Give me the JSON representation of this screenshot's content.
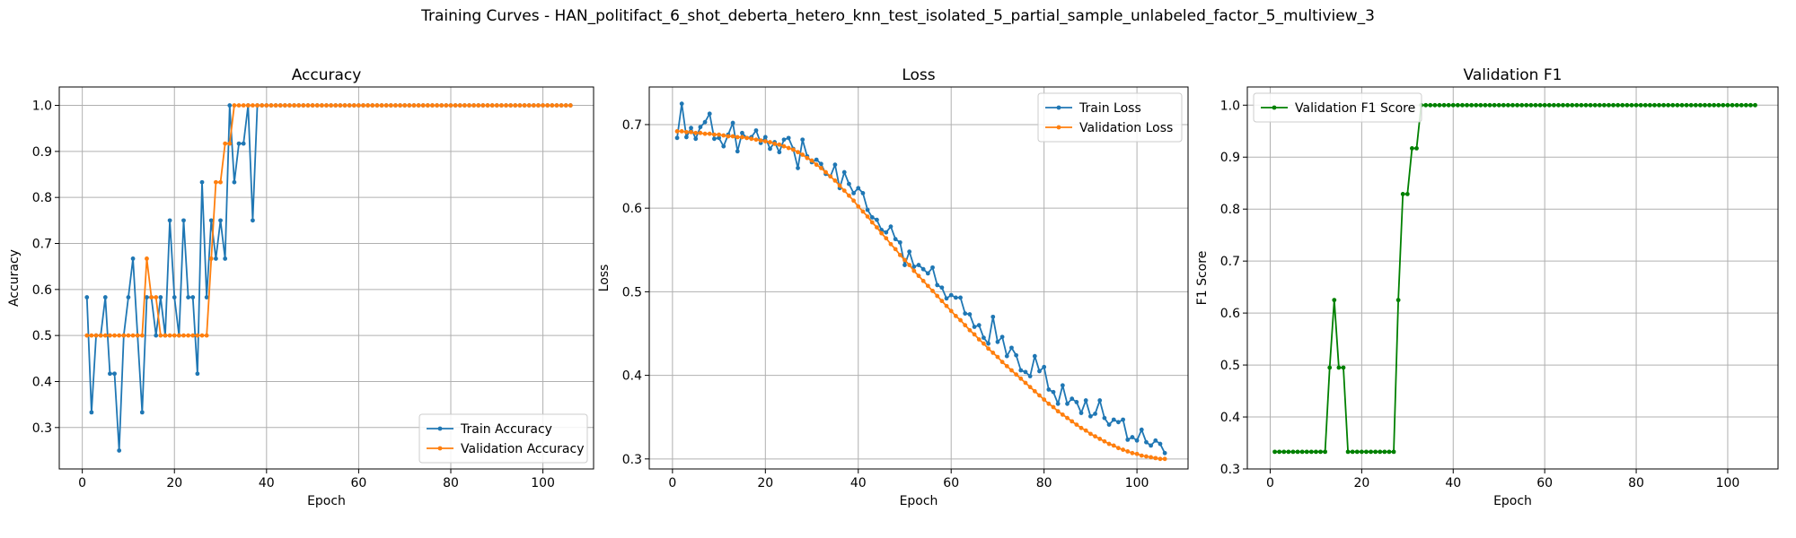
{
  "figure": {
    "title": "Training Curves - HAN_politifact_6_shot_deberta_hetero_knn_test_isolated_5_partial_sample_unlabeled_factor_5_multiview_3"
  },
  "colors": {
    "train": "#1f77b4",
    "validation": "#ff7f0e",
    "f1": "#008000",
    "grid": "#b0b0b0"
  },
  "chart_data": [
    {
      "type": "line",
      "title": "Accuracy",
      "xlabel": "Epoch",
      "ylabel": "Accuracy",
      "xlim": [
        -5,
        111
      ],
      "ylim": [
        0.21,
        1.04
      ],
      "xticks": [
        0,
        20,
        40,
        60,
        80,
        100
      ],
      "yticks": [
        0.3,
        0.4,
        0.5,
        0.6,
        0.7,
        0.8,
        0.9,
        1.0
      ],
      "ytick_labels": [
        "0.3",
        "0.4",
        "0.5",
        "0.6",
        "0.7",
        "0.8",
        "0.9",
        "1.0"
      ],
      "grid": true,
      "legend": "lower-right",
      "series": [
        {
          "name": "Train Accuracy",
          "color": "#1f77b4",
          "values": [
            0.583,
            0.333,
            0.5,
            0.5,
            0.583,
            0.417,
            0.417,
            0.25,
            0.5,
            0.583,
            0.667,
            0.5,
            0.333,
            0.583,
            0.583,
            0.5,
            0.583,
            0.5,
            0.75,
            0.583,
            0.5,
            0.75,
            0.583,
            0.583,
            0.417,
            0.833,
            0.583,
            0.75,
            0.667,
            0.75,
            0.667,
            1.0,
            0.833,
            0.917,
            0.917,
            1.0,
            0.75,
            1.0,
            1.0,
            1.0,
            1.0,
            1.0,
            1.0,
            1.0,
            1.0,
            1.0,
            1.0,
            1.0,
            1.0,
            1.0,
            1.0,
            1.0,
            1.0,
            1.0,
            1.0,
            1.0,
            1.0,
            1.0,
            1.0,
            1.0,
            1.0,
            1.0,
            1.0,
            1.0,
            1.0,
            1.0,
            1.0,
            1.0,
            1.0,
            1.0,
            1.0,
            1.0,
            1.0,
            1.0,
            1.0,
            1.0,
            1.0,
            1.0,
            1.0,
            1.0,
            1.0,
            1.0,
            1.0,
            1.0,
            1.0,
            1.0,
            1.0,
            1.0,
            1.0,
            1.0,
            1.0,
            1.0,
            1.0,
            1.0,
            1.0,
            1.0,
            1.0,
            1.0,
            1.0,
            1.0,
            1.0,
            1.0,
            1.0,
            1.0,
            1.0,
            1.0
          ]
        },
        {
          "name": "Validation Accuracy",
          "color": "#ff7f0e",
          "values": [
            0.5,
            0.5,
            0.5,
            0.5,
            0.5,
            0.5,
            0.5,
            0.5,
            0.5,
            0.5,
            0.5,
            0.5,
            0.5,
            0.667,
            0.583,
            0.583,
            0.5,
            0.5,
            0.5,
            0.5,
            0.5,
            0.5,
            0.5,
            0.5,
            0.5,
            0.5,
            0.5,
            0.667,
            0.833,
            0.833,
            0.917,
            0.917,
            1.0,
            1.0,
            1.0,
            1.0,
            1.0,
            1.0,
            1.0,
            1.0,
            1.0,
            1.0,
            1.0,
            1.0,
            1.0,
            1.0,
            1.0,
            1.0,
            1.0,
            1.0,
            1.0,
            1.0,
            1.0,
            1.0,
            1.0,
            1.0,
            1.0,
            1.0,
            1.0,
            1.0,
            1.0,
            1.0,
            1.0,
            1.0,
            1.0,
            1.0,
            1.0,
            1.0,
            1.0,
            1.0,
            1.0,
            1.0,
            1.0,
            1.0,
            1.0,
            1.0,
            1.0,
            1.0,
            1.0,
            1.0,
            1.0,
            1.0,
            1.0,
            1.0,
            1.0,
            1.0,
            1.0,
            1.0,
            1.0,
            1.0,
            1.0,
            1.0,
            1.0,
            1.0,
            1.0,
            1.0,
            1.0,
            1.0,
            1.0,
            1.0,
            1.0,
            1.0,
            1.0,
            1.0,
            1.0,
            1.0
          ]
        }
      ]
    },
    {
      "type": "line",
      "title": "Loss",
      "xlabel": "Epoch",
      "ylabel": "Loss",
      "xlim": [
        -5,
        111
      ],
      "ylim": [
        0.288,
        0.745
      ],
      "xticks": [
        0,
        20,
        40,
        60,
        80,
        100
      ],
      "yticks": [
        0.3,
        0.4,
        0.5,
        0.6,
        0.7
      ],
      "ytick_labels": [
        "0.3",
        "0.4",
        "0.5",
        "0.6",
        "0.7"
      ],
      "grid": true,
      "legend": "top-right",
      "series": [
        {
          "name": "Train Loss",
          "color": "#1f77b4",
          "values": [
            0.684,
            0.725,
            0.685,
            0.696,
            0.683,
            0.697,
            0.703,
            0.713,
            0.683,
            0.684,
            0.674,
            0.688,
            0.702,
            0.668,
            0.69,
            0.684,
            0.685,
            0.693,
            0.678,
            0.685,
            0.671,
            0.679,
            0.667,
            0.682,
            0.684,
            0.671,
            0.648,
            0.682,
            0.662,
            0.655,
            0.658,
            0.653,
            0.641,
            0.638,
            0.652,
            0.624,
            0.643,
            0.629,
            0.618,
            0.624,
            0.618,
            0.598,
            0.589,
            0.586,
            0.574,
            0.571,
            0.578,
            0.563,
            0.559,
            0.532,
            0.548,
            0.53,
            0.532,
            0.527,
            0.522,
            0.529,
            0.508,
            0.505,
            0.492,
            0.496,
            0.493,
            0.493,
            0.474,
            0.473,
            0.458,
            0.46,
            0.445,
            0.438,
            0.47,
            0.44,
            0.446,
            0.423,
            0.433,
            0.424,
            0.406,
            0.404,
            0.399,
            0.423,
            0.405,
            0.41,
            0.383,
            0.38,
            0.366,
            0.388,
            0.366,
            0.372,
            0.368,
            0.355,
            0.37,
            0.351,
            0.354,
            0.37,
            0.349,
            0.341,
            0.347,
            0.344,
            0.347,
            0.323,
            0.326,
            0.322,
            0.335,
            0.32,
            0.316,
            0.322,
            0.318,
            0.307
          ]
        },
        {
          "name": "Validation Loss",
          "color": "#ff7f0e",
          "values": [
            0.692,
            0.692,
            0.691,
            0.691,
            0.69,
            0.69,
            0.689,
            0.689,
            0.688,
            0.688,
            0.687,
            0.686,
            0.686,
            0.685,
            0.685,
            0.684,
            0.683,
            0.682,
            0.681,
            0.68,
            0.679,
            0.677,
            0.676,
            0.674,
            0.672,
            0.67,
            0.667,
            0.664,
            0.66,
            0.657,
            0.652,
            0.648,
            0.643,
            0.638,
            0.633,
            0.627,
            0.621,
            0.615,
            0.609,
            0.602,
            0.596,
            0.59,
            0.583,
            0.577,
            0.57,
            0.564,
            0.557,
            0.551,
            0.544,
            0.538,
            0.532,
            0.525,
            0.519,
            0.513,
            0.507,
            0.501,
            0.495,
            0.489,
            0.483,
            0.477,
            0.471,
            0.466,
            0.46,
            0.454,
            0.449,
            0.443,
            0.438,
            0.432,
            0.427,
            0.422,
            0.416,
            0.411,
            0.406,
            0.401,
            0.396,
            0.391,
            0.386,
            0.381,
            0.376,
            0.371,
            0.366,
            0.362,
            0.357,
            0.353,
            0.349,
            0.345,
            0.341,
            0.337,
            0.334,
            0.33,
            0.327,
            0.324,
            0.321,
            0.318,
            0.316,
            0.313,
            0.311,
            0.309,
            0.307,
            0.306,
            0.304,
            0.303,
            0.302,
            0.301,
            0.3,
            0.3
          ]
        }
      ]
    },
    {
      "type": "line",
      "title": "Validation F1",
      "xlabel": "Epoch",
      "ylabel": "F1 Score",
      "xlim": [
        -5,
        111
      ],
      "ylim": [
        0.3,
        1.035
      ],
      "xticks": [
        0,
        20,
        40,
        60,
        80,
        100
      ],
      "yticks": [
        0.3,
        0.4,
        0.5,
        0.6,
        0.7,
        0.8,
        0.9,
        1.0
      ],
      "ytick_labels": [
        "0.3",
        "0.4",
        "0.5",
        "0.6",
        "0.7",
        "0.8",
        "0.9",
        "1.0"
      ],
      "grid": true,
      "legend": "top-left",
      "series": [
        {
          "name": "Validation F1 Score",
          "color": "#008000",
          "values": [
            0.333,
            0.333,
            0.333,
            0.333,
            0.333,
            0.333,
            0.333,
            0.333,
            0.333,
            0.333,
            0.333,
            0.333,
            0.495,
            0.625,
            0.495,
            0.495,
            0.333,
            0.333,
            0.333,
            0.333,
            0.333,
            0.333,
            0.333,
            0.333,
            0.333,
            0.333,
            0.333,
            0.625,
            0.829,
            0.829,
            0.917,
            0.917,
            1.0,
            1.0,
            1.0,
            1.0,
            1.0,
            1.0,
            1.0,
            1.0,
            1.0,
            1.0,
            1.0,
            1.0,
            1.0,
            1.0,
            1.0,
            1.0,
            1.0,
            1.0,
            1.0,
            1.0,
            1.0,
            1.0,
            1.0,
            1.0,
            1.0,
            1.0,
            1.0,
            1.0,
            1.0,
            1.0,
            1.0,
            1.0,
            1.0,
            1.0,
            1.0,
            1.0,
            1.0,
            1.0,
            1.0,
            1.0,
            1.0,
            1.0,
            1.0,
            1.0,
            1.0,
            1.0,
            1.0,
            1.0,
            1.0,
            1.0,
            1.0,
            1.0,
            1.0,
            1.0,
            1.0,
            1.0,
            1.0,
            1.0,
            1.0,
            1.0,
            1.0,
            1.0,
            1.0,
            1.0,
            1.0,
            1.0,
            1.0,
            1.0,
            1.0,
            1.0,
            1.0,
            1.0,
            1.0,
            1.0
          ]
        }
      ]
    }
  ]
}
